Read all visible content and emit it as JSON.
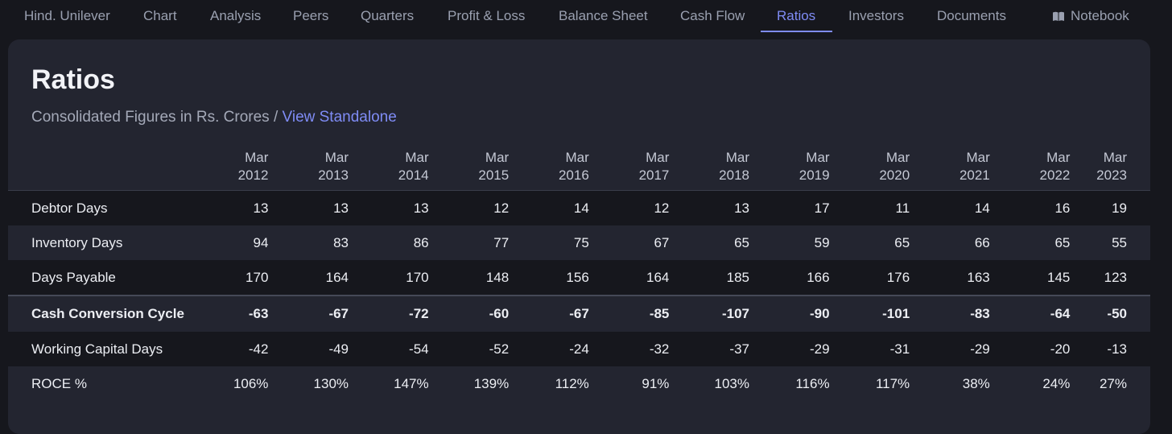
{
  "nav": {
    "items": [
      {
        "label": "Hind. Unilever"
      },
      {
        "label": "Chart"
      },
      {
        "label": "Analysis"
      },
      {
        "label": "Peers"
      },
      {
        "label": "Quarters"
      },
      {
        "label": "Profit & Loss"
      },
      {
        "label": "Balance Sheet"
      },
      {
        "label": "Cash Flow"
      },
      {
        "label": "Ratios"
      },
      {
        "label": "Investors"
      },
      {
        "label": "Documents"
      }
    ],
    "active": "Ratios",
    "notebook_label": "Notebook",
    "notebook_icon": "book-icon"
  },
  "section": {
    "title": "Ratios",
    "subtitle_prefix": "Consolidated Figures in Rs. Crores / ",
    "subtitle_link": "View Standalone"
  },
  "table": {
    "years": [
      {
        "month": "Mar",
        "year": "2012"
      },
      {
        "month": "Mar",
        "year": "2013"
      },
      {
        "month": "Mar",
        "year": "2014"
      },
      {
        "month": "Mar",
        "year": "2015"
      },
      {
        "month": "Mar",
        "year": "2016"
      },
      {
        "month": "Mar",
        "year": "2017"
      },
      {
        "month": "Mar",
        "year": "2018"
      },
      {
        "month": "Mar",
        "year": "2019"
      },
      {
        "month": "Mar",
        "year": "2020"
      },
      {
        "month": "Mar",
        "year": "2021"
      },
      {
        "month": "Mar",
        "year": "2022"
      },
      {
        "month": "Mar",
        "year": "2023"
      }
    ],
    "rows": [
      {
        "label": "Debtor Days",
        "values": [
          "13",
          "13",
          "13",
          "12",
          "14",
          "12",
          "13",
          "17",
          "11",
          "14",
          "16",
          "19"
        ]
      },
      {
        "label": "Inventory Days",
        "values": [
          "94",
          "83",
          "86",
          "77",
          "75",
          "67",
          "65",
          "59",
          "65",
          "66",
          "65",
          "55"
        ]
      },
      {
        "label": "Days Payable",
        "values": [
          "170",
          "164",
          "170",
          "148",
          "156",
          "164",
          "185",
          "166",
          "176",
          "163",
          "145",
          "123"
        ]
      },
      {
        "label": "Cash Conversion Cycle",
        "values": [
          "-63",
          "-67",
          "-72",
          "-60",
          "-67",
          "-85",
          "-107",
          "-90",
          "-101",
          "-83",
          "-64",
          "-50"
        ]
      },
      {
        "label": "Working Capital Days",
        "values": [
          "-42",
          "-49",
          "-54",
          "-52",
          "-24",
          "-32",
          "-37",
          "-29",
          "-31",
          "-29",
          "-20",
          "-13"
        ]
      },
      {
        "label": "ROCE %",
        "values": [
          "106%",
          "130%",
          "147%",
          "139%",
          "112%",
          "91%",
          "103%",
          "116%",
          "117%",
          "38%",
          "24%",
          "27%"
        ]
      }
    ]
  },
  "colors": {
    "accent": "#7f8cf5",
    "background": "#16171d",
    "card": "#232530"
  }
}
